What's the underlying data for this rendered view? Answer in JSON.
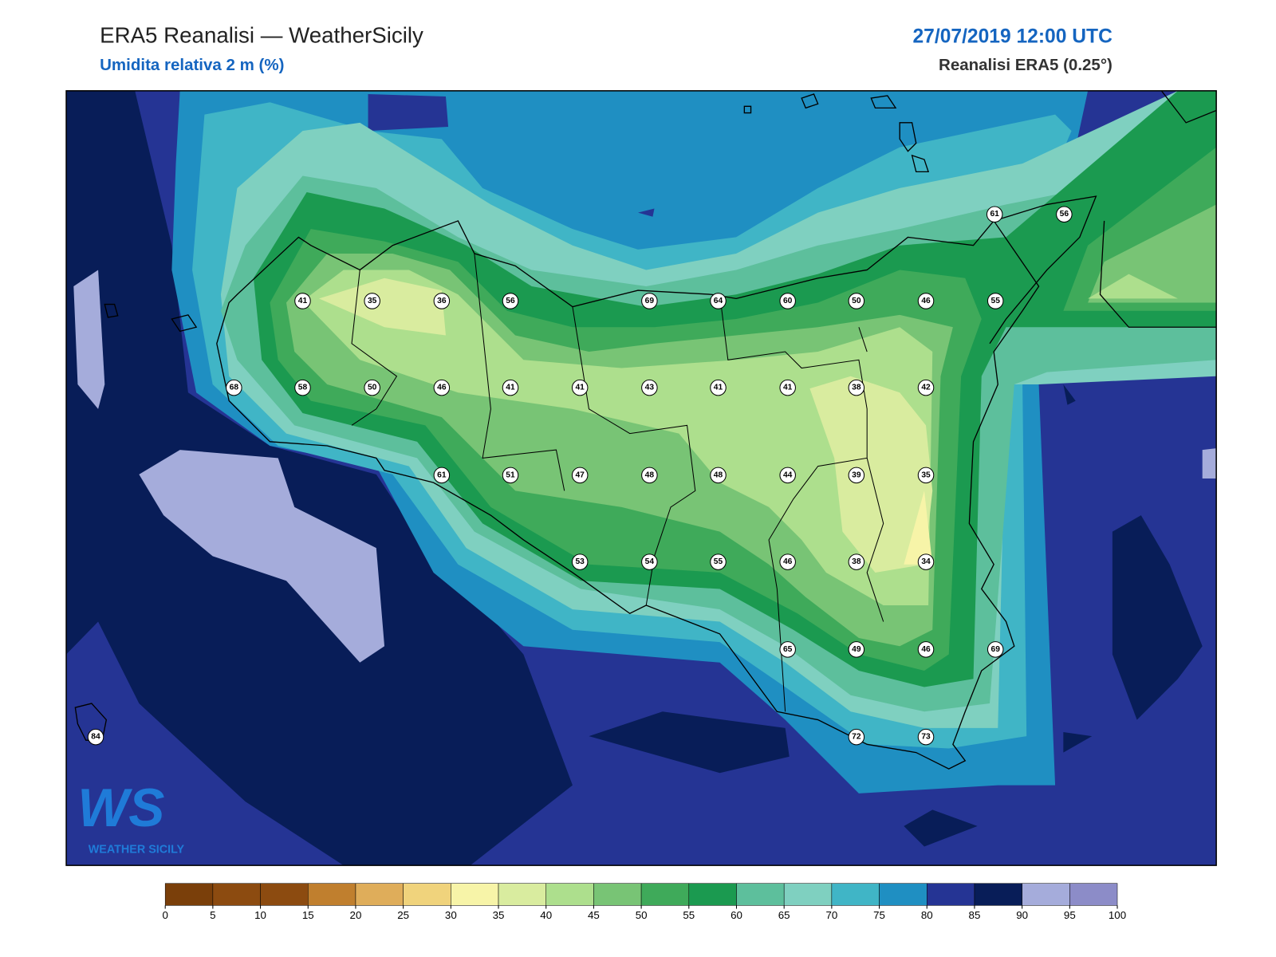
{
  "header": {
    "title": "ERA5 Reanalisi — WeatherSicily",
    "subtitle": "Umidita relativa 2 m (%)",
    "datetime": "27/07/2019 12:00 UTC",
    "source": "Reanalisi ERA5 (0.25°)"
  },
  "stations": [
    41,
    35,
    36,
    56,
    69,
    64,
    60,
    50,
    46,
    55,
    61,
    56,
    68,
    58,
    50,
    46,
    41,
    41,
    43,
    41,
    41,
    38,
    42,
    61,
    51,
    47,
    48,
    48,
    44,
    39,
    35,
    53,
    54,
    55,
    46,
    38,
    34,
    65,
    49,
    46,
    69,
    84,
    72,
    73
  ],
  "colorbar": {
    "ticks": [
      0,
      5,
      10,
      15,
      20,
      25,
      30,
      35,
      40,
      45,
      50,
      55,
      60,
      65,
      70,
      75,
      80,
      85,
      90,
      95,
      100
    ],
    "colors": [
      "#7a3f0a",
      "#8c4b10",
      "#8c4b10",
      "#c07f2e",
      "#dfad5a",
      "#f0d37c",
      "#f7f4a8",
      "#d9ec9f",
      "#addf8d",
      "#78c475",
      "#3faa5a",
      "#1b9a50",
      "#5dbf9c",
      "#7fd0c0",
      "#40b5c6",
      "#1f8fc2",
      "#253494",
      "#081d58",
      "#a5acdb",
      "#8c8cc8"
    ]
  },
  "logo": {
    "mark": "WS",
    "name": "WEATHER SICILY"
  }
}
